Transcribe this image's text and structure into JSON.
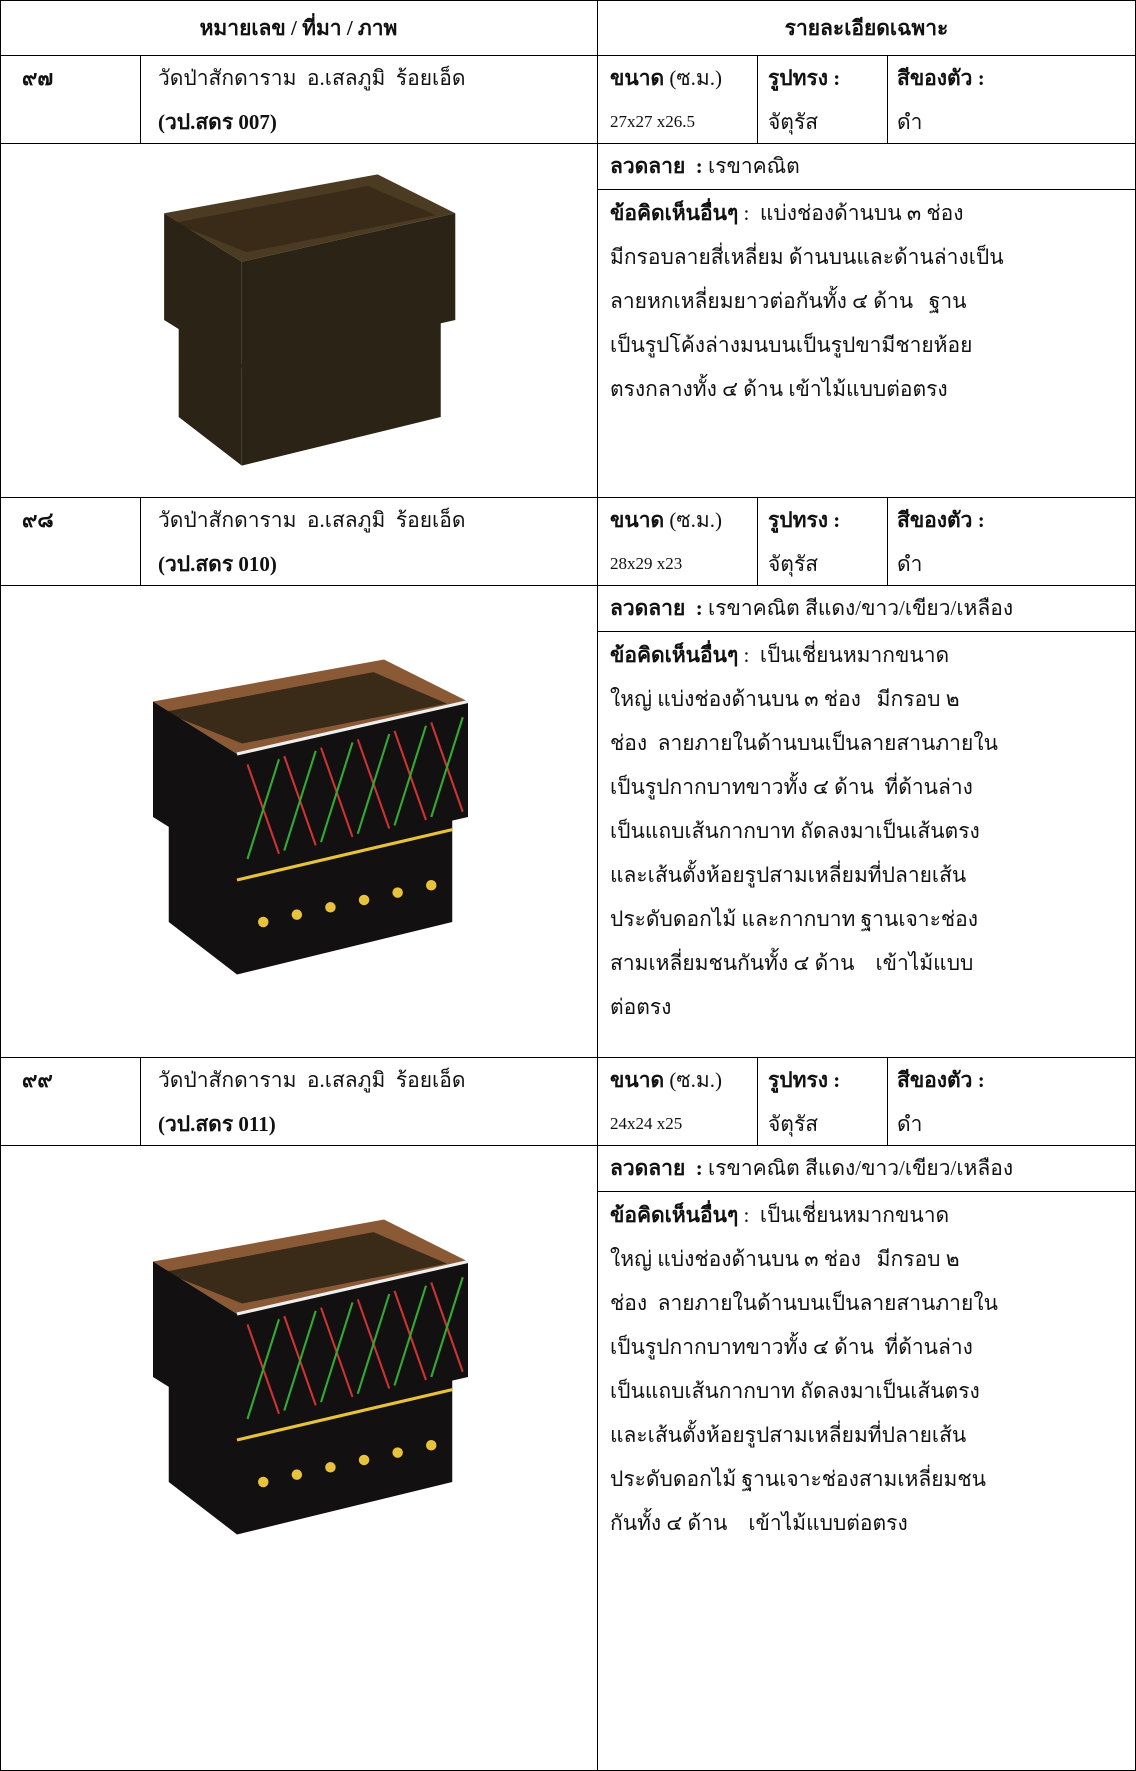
{
  "table": {
    "header": [
      "หมายเลข / ที่มา / ภาพ",
      "รายละเอียดเฉพาะ"
    ],
    "entries": [
      {
        "number": "๙๗",
        "source": "วัดป่าสักดาราม  อ.เสลภูมิ  ร้อยเอ็ด",
        "code": "(วป.สดร 007)",
        "size_label": "ขนาด",
        "size_unit": "(ซ.ม.)",
        "size": "27x27 x26.5",
        "shape_label": "รูปทรง :",
        "shape": "จัตุรัส",
        "color_label": "สีของตัว :",
        "color": "ดำ",
        "pattern_label": "ลวดลาย  :",
        "pattern": "เรขาคณิต",
        "comment_label": "ข้อคิดเห็นอื่นๆ",
        "comment_lines": [
          ":  แบ่งช่องด้านบน ๓ ช่อง",
          "มีกรอบลายสี่เหลี่ยม ด้านบนและด้านล่างเป็น",
          "ลายหกเหลี่ยมยาวต่อกันทั้ง ๔ ด้าน   ฐาน",
          "เป็นรูปโค้งล่างมนบนเป็นรูปขามีชายห้อย",
          "ตรงกลางทั้ง ๔ ด้าน เข้าไม้แบบต่อตรง"
        ]
      },
      {
        "number": "๙๘",
        "source": "วัดป่าสักดาราม  อ.เสลภูมิ  ร้อยเอ็ด",
        "code": "(วป.สดร 010)",
        "size_label": "ขนาด",
        "size_unit": "(ซ.ม.)",
        "size": "28x29 x23",
        "shape_label": "รูปทรง :",
        "shape": "จัตุรัส",
        "color_label": "สีของตัว :",
        "color": "ดำ",
        "pattern_label": "ลวดลาย  :",
        "pattern": "เรขาคณิต สีแดง/ขาว/เขียว/เหลือง",
        "comment_label": "ข้อคิดเห็นอื่นๆ",
        "comment_lines": [
          ":  เป็นเชี่ยนหมากขนาด",
          "ใหญ่ แบ่งช่องด้านบน ๓ ช่อง   มีกรอบ ๒",
          "ช่อง  ลายภายในด้านบนเป็นลายสานภายใน",
          "เป็นรูปกากบาทขาวทั้ง ๔ ด้าน  ที่ด้านล่าง",
          "เป็นแถบเส้นกากบาท ถัดลงมาเป็นเส้นตรง",
          "และเส้นตั้งห้อยรูปสามเหลี่ยมที่ปลายเส้น",
          "ประดับดอกไม้ และกากบาท ฐานเจาะช่อง",
          "สามเหลี่ยมชนกันทั้ง ๔ ด้าน    เข้าไม้แบบ",
          "ต่อตรง"
        ]
      },
      {
        "number": "๙๙",
        "source": "วัดป่าสักดาราม  อ.เสลภูมิ  ร้อยเอ็ด",
        "code": "(วป.สดร 011)",
        "size_label": "ขนาด",
        "size_unit": "(ซ.ม.)",
        "size": "24x24 x25",
        "shape_label": "รูปทรง :",
        "shape": "จัตุรัส",
        "color_label": "สีของตัว :",
        "color": "ดำ",
        "pattern_label": "ลวดลาย  :",
        "pattern": "เรขาคณิต สีแดง/ขาว/เขียว/เหลือง",
        "comment_label": "ข้อคิดเห็นอื่นๆ",
        "comment_lines": [
          ":  เป็นเชี่ยนหมากขนาด",
          "ใหญ่ แบ่งช่องด้านบน ๓ ช่อง   มีกรอบ ๒",
          "ช่อง  ลายภายในด้านบนเป็นลายสานภายใน",
          "เป็นรูปกากบาทขาวทั้ง ๔ ด้าน  ที่ด้านล่าง",
          "เป็นแถบเส้นกากบาท ถัดลงมาเป็นเส้นตรง",
          "และเส้นตั้งห้อยรูปสามเหลี่ยมที่ปลายเส้น",
          "ประดับดอกไม้ ฐานเจาะช่องสามเหลี่ยมชน",
          "กันทั้ง ๔ ด้าน    เข้าไม้แบบต่อตรง"
        ]
      }
    ]
  }
}
